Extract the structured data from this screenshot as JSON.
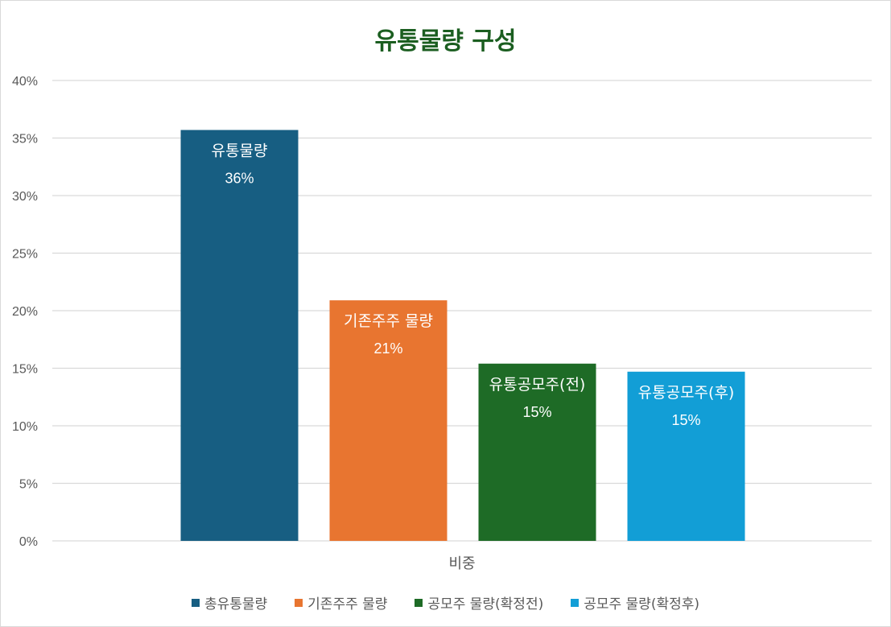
{
  "chart_data": {
    "type": "bar",
    "title": "유통물량 구성",
    "categories": [
      "비중"
    ],
    "ylim": [
      0,
      40
    ],
    "yticks": [
      "0%",
      "5%",
      "10%",
      "15%",
      "20%",
      "25%",
      "30%",
      "35%",
      "40%"
    ],
    "tick_values": [
      0,
      5,
      10,
      15,
      20,
      25,
      30,
      35,
      40
    ],
    "grid": true,
    "legend_position": "bottom",
    "series": [
      {
        "name": "총유통물량",
        "value": 35.7,
        "label_name": "유통물량",
        "label_value": "36%",
        "color": "#175e82"
      },
      {
        "name": "기존주주 물량",
        "value": 20.9,
        "label_name": "기존주주 물량",
        "label_value": "21%",
        "color": "#e87530"
      },
      {
        "name": "공모주 물량(확정전)",
        "value": 15.4,
        "label_name": "유통공모주(전)",
        "label_value": "15%",
        "color": "#1e6b26"
      },
      {
        "name": "공모주 물량(확정후)",
        "value": 14.7,
        "label_name": "유통공모주(후)",
        "label_value": "15%",
        "color": "#129ed6"
      }
    ]
  }
}
